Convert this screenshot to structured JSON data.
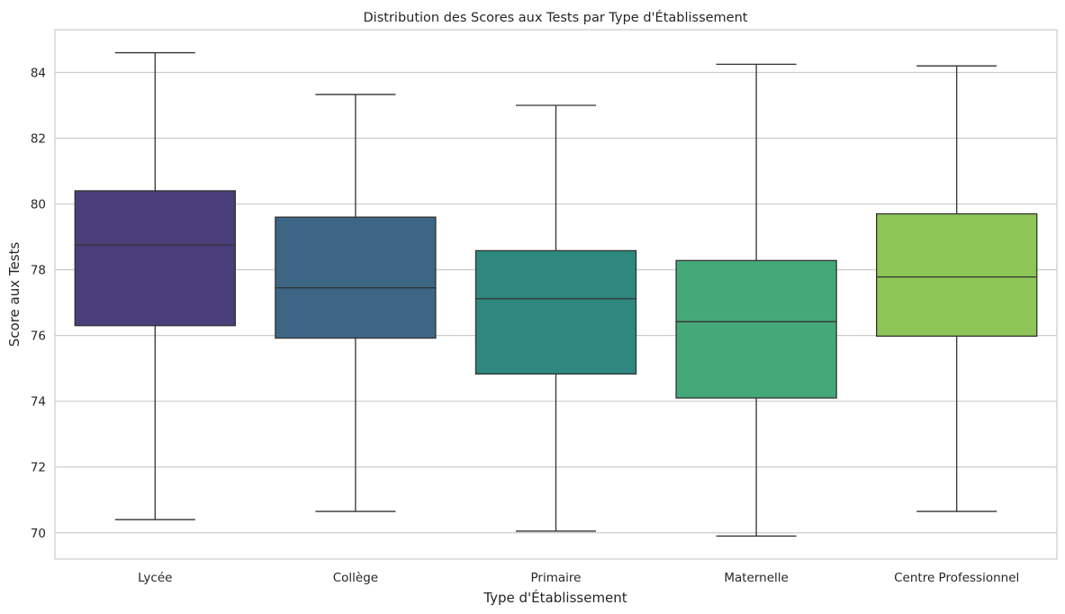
{
  "chart_data": {
    "type": "box",
    "title": "Distribution des Scores aux Tests par Type d'Établissement",
    "xlabel": "Type d'Établissement",
    "ylabel": "Score aux Tests",
    "ylim": [
      69.2,
      85.3
    ],
    "yticks": [
      70,
      72,
      74,
      76,
      78,
      80,
      82,
      84
    ],
    "grid": true,
    "categories": [
      "Lycée",
      "Collège",
      "Primaire",
      "Maternelle",
      "Centre Professionnel"
    ],
    "boxes": [
      {
        "category": "Lycée",
        "whisker_low": 70.4,
        "q1": 76.3,
        "median": 78.75,
        "q3": 80.4,
        "whisker_high": 84.6,
        "color": "#4a3f7a"
      },
      {
        "category": "Collège",
        "whisker_low": 70.65,
        "q1": 75.92,
        "median": 77.45,
        "q3": 79.6,
        "whisker_high": 83.33,
        "color": "#3d6685"
      },
      {
        "category": "Primaire",
        "whisker_low": 70.05,
        "q1": 74.83,
        "median": 77.12,
        "q3": 78.58,
        "whisker_high": 83.0,
        "color": "#2e8880"
      },
      {
        "category": "Maternelle",
        "whisker_low": 69.9,
        "q1": 74.1,
        "median": 76.42,
        "q3": 78.28,
        "whisker_high": 84.25,
        "color": "#45a878"
      },
      {
        "category": "Centre Professionnel",
        "whisker_low": 70.65,
        "q1": 75.98,
        "median": 77.78,
        "q3": 79.7,
        "whisker_high": 84.2,
        "color": "#8dc656"
      }
    ]
  }
}
